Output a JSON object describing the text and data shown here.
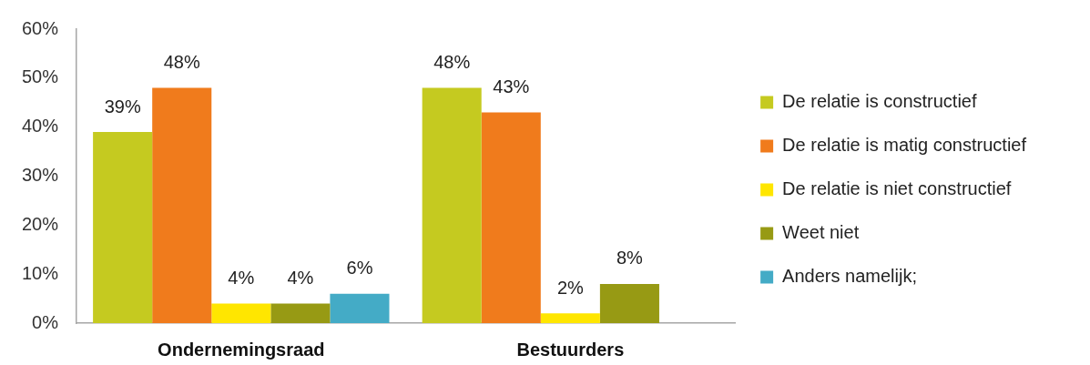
{
  "chart_data": {
    "type": "bar",
    "categories": [
      "Ondernemingsraad",
      "Bestuurders"
    ],
    "series": [
      {
        "name": "De relatie is constructief",
        "color": "#c5ca20",
        "values": [
          39,
          48
        ],
        "value_labels": [
          "39%",
          "48%"
        ]
      },
      {
        "name": "De relatie is matig constructief",
        "color": "#f07b1c",
        "values": [
          48,
          43
        ],
        "value_labels": [
          "48%",
          "43%"
        ]
      },
      {
        "name": "De relatie is niet constructief",
        "color": "#ffe600",
        "values": [
          4,
          2
        ],
        "value_labels": [
          "4%",
          "2%"
        ]
      },
      {
        "name": "Weet niet",
        "color": "#979a14",
        "values": [
          4,
          8
        ],
        "value_labels": [
          "4%",
          "8%"
        ]
      },
      {
        "name": "Anders namelijk;",
        "color": "#44abc6",
        "values": [
          6,
          null
        ],
        "value_labels": [
          "6%",
          null
        ]
      }
    ],
    "ylim": [
      0,
      60
    ],
    "yticks": [
      {
        "value": 0,
        "label": "0%"
      },
      {
        "value": 10,
        "label": "10%"
      },
      {
        "value": 20,
        "label": "20%"
      },
      {
        "value": 30,
        "label": "30%"
      },
      {
        "value": 40,
        "label": "40%"
      },
      {
        "value": 50,
        "label": "50%"
      },
      {
        "value": 60,
        "label": "60%"
      }
    ],
    "grid": false,
    "legend": "right"
  }
}
